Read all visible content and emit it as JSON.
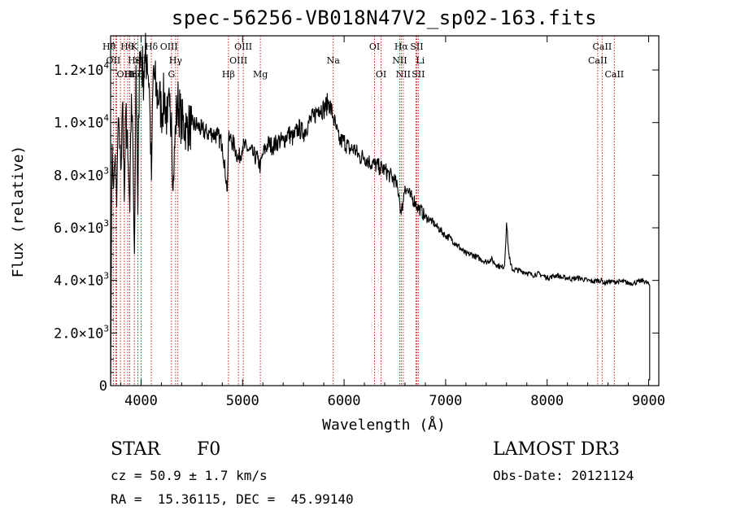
{
  "chart_data": {
    "type": "line",
    "title": "spec-56256-VB018N47V2_sp02-163.fits",
    "xlabel": "Wavelength (Å)",
    "ylabel": "Flux (relative)",
    "xlim": [
      3700,
      9100
    ],
    "ylim": [
      0,
      13300
    ],
    "x_ticks": [
      4000,
      5000,
      6000,
      7000,
      8000,
      9000
    ],
    "x_tick_labels": [
      "4000",
      "5000",
      "6000",
      "7000",
      "8000",
      "9000"
    ],
    "y_ticks": [
      0,
      2000,
      4000,
      6000,
      8000,
      10000,
      12000
    ],
    "y_tick_labels": [
      {
        "mant": "0",
        "exp": ""
      },
      {
        "mant": "2.0×10",
        "exp": "3"
      },
      {
        "mant": "4.0×10",
        "exp": "3"
      },
      {
        "mant": "6.0×10",
        "exp": "3"
      },
      {
        "mant": "8.0×10",
        "exp": "3"
      },
      {
        "mant": "1.0×10",
        "exp": "4"
      },
      {
        "mant": "1.2×10",
        "exp": "4"
      }
    ],
    "spectrum": {
      "name": "flux",
      "x": [
        3700,
        3715,
        3730,
        3745,
        3760,
        3775,
        3790,
        3800,
        3820,
        3835,
        3850,
        3870,
        3889,
        3905,
        3920,
        3935,
        3950,
        3968,
        3985,
        4000,
        4020,
        4040,
        4060,
        4080,
        4102,
        4120,
        4150,
        4180,
        4200,
        4230,
        4260,
        4280,
        4300,
        4315,
        4340,
        4360,
        4400,
        4450,
        4500,
        4550,
        4600,
        4650,
        4700,
        4750,
        4800,
        4850,
        4861,
        4880,
        4920,
        4960,
        5000,
        5050,
        5100,
        5150,
        5175,
        5200,
        5250,
        5300,
        5350,
        5400,
        5450,
        5500,
        5550,
        5600,
        5650,
        5700,
        5750,
        5800,
        5850,
        5893,
        5920,
        5950,
        6000,
        6050,
        6100,
        6150,
        6200,
        6250,
        6300,
        6350,
        6400,
        6450,
        6500,
        6540,
        6563,
        6580,
        6600,
        6650,
        6700,
        6720,
        6750,
        6800,
        6850,
        6900,
        6950,
        7000,
        7050,
        7100,
        7150,
        7200,
        7250,
        7300,
        7350,
        7400,
        7450,
        7500,
        7550,
        7580,
        7600,
        7620,
        7640,
        7660,
        7700,
        7750,
        7800,
        7850,
        7900,
        7950,
        8000,
        8050,
        8100,
        8150,
        8200,
        8250,
        8300,
        8350,
        8400,
        8450,
        8500,
        8542,
        8560,
        8600,
        8662,
        8700,
        8750,
        8800,
        8850,
        8900,
        8950,
        9000,
        9010,
        9010
      ],
      "y": [
        0,
        9200,
        7500,
        8800,
        6800,
        10200,
        9000,
        8200,
        10800,
        7000,
        10500,
        8600,
        6600,
        11100,
        8900,
        5000,
        12200,
        6500,
        12700,
        12500,
        11800,
        12300,
        12600,
        11500,
        7800,
        12000,
        11100,
        11000,
        10400,
        11000,
        10000,
        10600,
        10400,
        7400,
        9900,
        10800,
        10000,
        9800,
        9900,
        9900,
        9700,
        9600,
        9600,
        9500,
        9200,
        7400,
        9300,
        9400,
        9100,
        8600,
        9100,
        9000,
        8800,
        8600,
        8300,
        8800,
        9200,
        9100,
        9300,
        9300,
        9600,
        9400,
        9800,
        9600,
        10000,
        10200,
        10600,
        10500,
        10800,
        10200,
        9800,
        9300,
        9300,
        9000,
        9000,
        8700,
        8700,
        8500,
        8400,
        8300,
        8200,
        8000,
        7800,
        7300,
        6500,
        7000,
        7600,
        7200,
        7000,
        6800,
        6700,
        6400,
        6300,
        6100,
        5900,
        5700,
        5600,
        5400,
        5200,
        5000,
        5000,
        4900,
        4800,
        4700,
        4800,
        4600,
        4500,
        4550,
        6200,
        5100,
        4600,
        4400,
        4400,
        4350,
        4300,
        4200,
        4250,
        4200,
        4100,
        4150,
        4200,
        4100,
        4100,
        4050,
        4100,
        4050,
        4000,
        3950,
        4000,
        4000,
        3900,
        3950,
        3950,
        3950,
        3950,
        3900,
        3900,
        3950,
        4000,
        3850,
        3800,
        200
      ]
    },
    "lines": [
      {
        "x": 3727,
        "label": "OII",
        "row": 1,
        "align": "middle"
      },
      {
        "x": 3750,
        "label": "Hθ",
        "row": 0,
        "align": "end"
      },
      {
        "x": 3760,
        "label": "OIII",
        "row": 2,
        "align": "start"
      },
      {
        "x": 3797,
        "label": "Hθ",
        "row": 0,
        "align": "start"
      },
      {
        "x": 3835,
        "label": "Hη",
        "row": 2,
        "align": "start"
      },
      {
        "x": 3869,
        "label": "HeI",
        "row": 1,
        "align": "start"
      },
      {
        "x": 3889,
        "label": "Hζ",
        "row": 2,
        "align": "start"
      },
      {
        "x": 3934,
        "label": "K",
        "row": 0,
        "align": "middle"
      },
      {
        "x": 3968,
        "label": "H",
        "row": 2,
        "align": "start"
      },
      {
        "x": 4000,
        "label": "SII",
        "row": 1,
        "align": "middle"
      },
      {
        "x": 4101,
        "label": "Hδ",
        "row": 0,
        "align": "middle"
      },
      {
        "x": 4300,
        "label": "G",
        "row": 2,
        "align": "middle"
      },
      {
        "x": 4340,
        "label": "Hγ",
        "row": 1,
        "align": "middle"
      },
      {
        "x": 4363,
        "label": "OIII",
        "row": 0,
        "align": "end"
      },
      {
        "x": 4861,
        "label": "Hβ",
        "row": 2,
        "align": "middle"
      },
      {
        "x": 4959,
        "label": "OIII",
        "row": 1,
        "align": "middle"
      },
      {
        "x": 5007,
        "label": "OIII",
        "row": 0,
        "align": "middle"
      },
      {
        "x": 5175,
        "label": "Mg",
        "row": 2,
        "align": "middle"
      },
      {
        "x": 5893,
        "label": "Na",
        "row": 1,
        "align": "middle"
      },
      {
        "x": 6300,
        "label": "OI",
        "row": 0,
        "align": "middle"
      },
      {
        "x": 6364,
        "label": "OI",
        "row": 2,
        "align": "middle"
      },
      {
        "x": 6548,
        "label": "NII",
        "row": 1,
        "align": "middle"
      },
      {
        "x": 6563,
        "label": "Hα",
        "row": 0,
        "align": "middle"
      },
      {
        "x": 6583,
        "label": "NII",
        "row": 2,
        "align": "middle"
      },
      {
        "x": 6707,
        "label": "Li",
        "row": 1,
        "align": "start"
      },
      {
        "x": 6716,
        "label": "SII",
        "row": 0,
        "align": "middle"
      },
      {
        "x": 6731,
        "label": "SII",
        "row": 2,
        "align": "middle"
      },
      {
        "x": 8498,
        "label": "CaII",
        "row": 1,
        "align": "middle"
      },
      {
        "x": 8542,
        "label": "CaII",
        "row": 0,
        "align": "middle"
      },
      {
        "x": 8662,
        "label": "CaII",
        "row": 2,
        "align": "middle"
      }
    ],
    "colors": {
      "spectrum": "#000000",
      "line_markers": "#cc0000",
      "axes": "#000000"
    }
  },
  "info": {
    "class_label": "STAR",
    "subclass": "F0",
    "survey": "LAMOST DR3",
    "redshift": "cz = 50.9 ± 1.7 km/s",
    "obs_date": "Obs-Date: 20121124",
    "coords": "RA =  15.36115, DEC =  45.99140"
  }
}
